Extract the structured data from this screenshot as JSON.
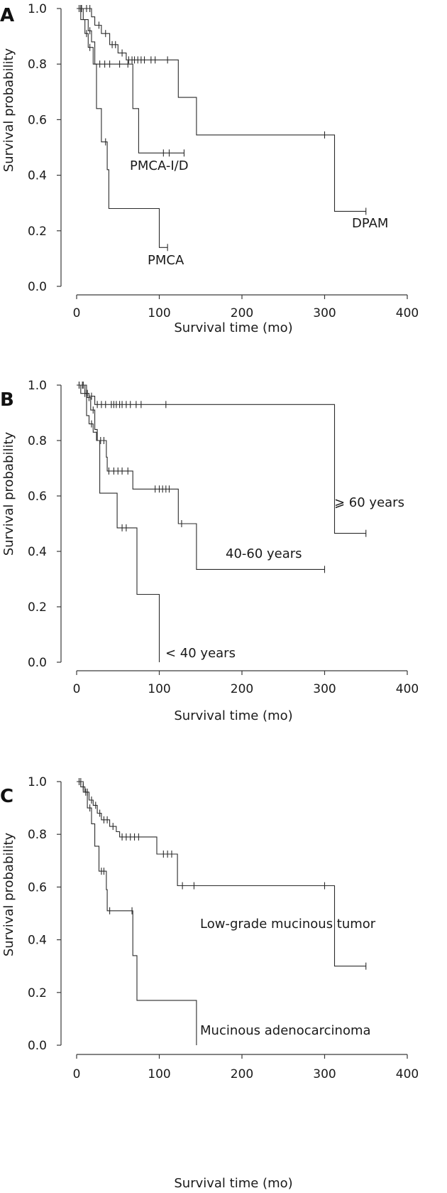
{
  "chart_data": [
    {
      "type": "line",
      "panel_label": "A",
      "xlabel": "Survival time (mo)",
      "ylabel": "Survival probability",
      "xlim": [
        0,
        400
      ],
      "ylim": [
        0,
        1
      ],
      "x_ticks": [
        "0",
        "100",
        "200",
        "300",
        "400"
      ],
      "y_ticks": [
        "0.0",
        "0.2",
        "0.4",
        "0.6",
        "0.8",
        "1.0"
      ],
      "grid": false,
      "series": [
        {
          "name": "DPAM",
          "steps": [
            [
              0,
              1.0
            ],
            [
              18,
              1.0
            ],
            [
              18,
              0.97
            ],
            [
              22,
              0.97
            ],
            [
              22,
              0.94
            ],
            [
              30,
              0.94
            ],
            [
              30,
              0.91
            ],
            [
              40,
              0.91
            ],
            [
              40,
              0.87
            ],
            [
              50,
              0.87
            ],
            [
              50,
              0.84
            ],
            [
              60,
              0.84
            ],
            [
              60,
              0.815
            ],
            [
              123,
              0.815
            ],
            [
              123,
              0.68
            ],
            [
              145,
              0.68
            ],
            [
              145,
              0.545
            ],
            [
              312,
              0.545
            ],
            [
              312,
              0.27
            ],
            [
              350,
              0.27
            ]
          ],
          "censors": [
            [
              5,
              1.0
            ],
            [
              12,
              1.0
            ],
            [
              16,
              1.0
            ],
            [
              27,
              0.94
            ],
            [
              35,
              0.91
            ],
            [
              43,
              0.87
            ],
            [
              47,
              0.87
            ],
            [
              55,
              0.84
            ],
            [
              63,
              0.815
            ],
            [
              67,
              0.815
            ],
            [
              70,
              0.815
            ],
            [
              74,
              0.815
            ],
            [
              78,
              0.815
            ],
            [
              82,
              0.815
            ],
            [
              90,
              0.815
            ],
            [
              95,
              0.815
            ],
            [
              110,
              0.815
            ],
            [
              300,
              0.545
            ],
            [
              350,
              0.27
            ]
          ]
        },
        {
          "name": "PMCA-I/D",
          "steps": [
            [
              0,
              1.0
            ],
            [
              8,
              1.0
            ],
            [
              8,
              0.96
            ],
            [
              14,
              0.96
            ],
            [
              14,
              0.92
            ],
            [
              18,
              0.92
            ],
            [
              18,
              0.88
            ],
            [
              22,
              0.88
            ],
            [
              22,
              0.8
            ],
            [
              68,
              0.8
            ],
            [
              68,
              0.64
            ],
            [
              75,
              0.64
            ],
            [
              75,
              0.48
            ],
            [
              130,
              0.48
            ]
          ],
          "censors": [
            [
              6,
              1.0
            ],
            [
              16,
              0.92
            ],
            [
              28,
              0.8
            ],
            [
              34,
              0.8
            ],
            [
              40,
              0.8
            ],
            [
              52,
              0.8
            ],
            [
              62,
              0.8
            ],
            [
              105,
              0.48
            ],
            [
              112,
              0.48
            ],
            [
              130,
              0.48
            ]
          ]
        },
        {
          "name": "PMCA",
          "steps": [
            [
              0,
              1.0
            ],
            [
              5,
              1.0
            ],
            [
              5,
              0.96
            ],
            [
              10,
              0.96
            ],
            [
              10,
              0.91
            ],
            [
              14,
              0.91
            ],
            [
              14,
              0.86
            ],
            [
              20,
              0.86
            ],
            [
              20,
              0.8
            ],
            [
              24,
              0.8
            ],
            [
              24,
              0.64
            ],
            [
              30,
              0.64
            ],
            [
              30,
              0.52
            ],
            [
              37,
              0.52
            ],
            [
              37,
              0.42
            ],
            [
              39,
              0.42
            ],
            [
              39,
              0.28
            ],
            [
              100,
              0.28
            ],
            [
              100,
              0.14
            ],
            [
              110,
              0.14
            ]
          ],
          "censors": [
            [
              3,
              1.0
            ],
            [
              12,
              0.91
            ],
            [
              16,
              0.86
            ],
            [
              35,
              0.52
            ],
            [
              110,
              0.14
            ]
          ]
        }
      ],
      "annotations": [
        "PMCA-I/D",
        "DPAM",
        "PMCA"
      ]
    },
    {
      "type": "line",
      "panel_label": "B",
      "xlabel": "Survival time (mo)",
      "ylabel": "Survival probability",
      "xlim": [
        0,
        400
      ],
      "ylim": [
        0,
        1
      ],
      "x_ticks": [
        "0",
        "100",
        "200",
        "300",
        "400"
      ],
      "y_ticks": [
        "0.0",
        "0.2",
        "0.4",
        "0.6",
        "0.8",
        "1.0"
      ],
      "grid": false,
      "series": [
        {
          "name": "⩾ 60 years",
          "steps": [
            [
              0,
              1.0
            ],
            [
              10,
              1.0
            ],
            [
              10,
              0.97
            ],
            [
              15,
              0.97
            ],
            [
              15,
              0.96
            ],
            [
              22,
              0.96
            ],
            [
              22,
              0.93
            ],
            [
              312,
              0.93
            ],
            [
              312,
              0.465
            ],
            [
              350,
              0.465
            ]
          ],
          "censors": [
            [
              3,
              1.0
            ],
            [
              7,
              1.0
            ],
            [
              13,
              0.97
            ],
            [
              18,
              0.96
            ],
            [
              25,
              0.93
            ],
            [
              30,
              0.93
            ],
            [
              35,
              0.93
            ],
            [
              42,
              0.93
            ],
            [
              45,
              0.93
            ],
            [
              48,
              0.93
            ],
            [
              52,
              0.93
            ],
            [
              55,
              0.93
            ],
            [
              60,
              0.93
            ],
            [
              65,
              0.93
            ],
            [
              72,
              0.93
            ],
            [
              78,
              0.93
            ],
            [
              108,
              0.93
            ],
            [
              350,
              0.465
            ]
          ]
        },
        {
          "name": "40-60 years",
          "steps": [
            [
              0,
              1.0
            ],
            [
              12,
              1.0
            ],
            [
              12,
              0.955
            ],
            [
              17,
              0.955
            ],
            [
              17,
              0.91
            ],
            [
              22,
              0.91
            ],
            [
              22,
              0.84
            ],
            [
              25,
              0.84
            ],
            [
              25,
              0.8
            ],
            [
              36,
              0.8
            ],
            [
              36,
              0.74
            ],
            [
              37,
              0.74
            ],
            [
              37,
              0.69
            ],
            [
              68,
              0.69
            ],
            [
              68,
              0.625
            ],
            [
              123,
              0.625
            ],
            [
              123,
              0.5
            ],
            [
              145,
              0.5
            ],
            [
              145,
              0.335
            ],
            [
              300,
              0.335
            ]
          ],
          "censors": [
            [
              8,
              1.0
            ],
            [
              15,
              0.955
            ],
            [
              20,
              0.91
            ],
            [
              29,
              0.8
            ],
            [
              33,
              0.8
            ],
            [
              39,
              0.69
            ],
            [
              45,
              0.69
            ],
            [
              50,
              0.69
            ],
            [
              55,
              0.69
            ],
            [
              62,
              0.69
            ],
            [
              95,
              0.625
            ],
            [
              100,
              0.625
            ],
            [
              104,
              0.625
            ],
            [
              108,
              0.625
            ],
            [
              112,
              0.625
            ],
            [
              127,
              0.5
            ],
            [
              300,
              0.335
            ]
          ]
        },
        {
          "name": "< 40 years",
          "steps": [
            [
              0,
              1.0
            ],
            [
              5,
              1.0
            ],
            [
              5,
              0.97
            ],
            [
              12,
              0.97
            ],
            [
              12,
              0.89
            ],
            [
              15,
              0.89
            ],
            [
              15,
              0.86
            ],
            [
              20,
              0.86
            ],
            [
              20,
              0.83
            ],
            [
              24,
              0.83
            ],
            [
              24,
              0.8
            ],
            [
              28,
              0.8
            ],
            [
              28,
              0.61
            ],
            [
              49,
              0.61
            ],
            [
              49,
              0.485
            ],
            [
              73,
              0.485
            ],
            [
              73,
              0.245
            ],
            [
              100,
              0.245
            ],
            [
              100,
              0.0
            ]
          ],
          "censors": [
            [
              3,
              1.0
            ],
            [
              10,
              0.97
            ],
            [
              18,
              0.86
            ],
            [
              55,
              0.485
            ],
            [
              60,
              0.485
            ]
          ]
        }
      ],
      "annotations": [
        "⩾ 60 years",
        "40-60 years",
        "< 40 years"
      ]
    },
    {
      "type": "line",
      "panel_label": "C",
      "xlabel": "Survival time (mo)",
      "ylabel": "Survival probability",
      "xlim": [
        0,
        400
      ],
      "ylim": [
        0,
        1
      ],
      "x_ticks": [
        "0",
        "100",
        "200",
        "300",
        "400"
      ],
      "y_ticks": [
        "0.0",
        "0.2",
        "0.4",
        "0.6",
        "0.8",
        "1.0"
      ],
      "grid": false,
      "series": [
        {
          "name": "Low-grade mucinous tumor",
          "steps": [
            [
              0,
              1.0
            ],
            [
              5,
              1.0
            ],
            [
              5,
              0.98
            ],
            [
              10,
              0.98
            ],
            [
              10,
              0.96
            ],
            [
              15,
              0.96
            ],
            [
              15,
              0.93
            ],
            [
              20,
              0.93
            ],
            [
              20,
              0.91
            ],
            [
              25,
              0.91
            ],
            [
              25,
              0.88
            ],
            [
              30,
              0.88
            ],
            [
              30,
              0.855
            ],
            [
              40,
              0.855
            ],
            [
              40,
              0.83
            ],
            [
              48,
              0.83
            ],
            [
              48,
              0.81
            ],
            [
              52,
              0.81
            ],
            [
              52,
              0.79
            ],
            [
              97,
              0.79
            ],
            [
              97,
              0.725
            ],
            [
              122,
              0.725
            ],
            [
              122,
              0.605
            ],
            [
              312,
              0.605
            ],
            [
              312,
              0.3
            ],
            [
              350,
              0.3
            ]
          ],
          "censors": [
            [
              3,
              1.0
            ],
            [
              8,
              0.98
            ],
            [
              13,
              0.96
            ],
            [
              18,
              0.93
            ],
            [
              23,
              0.91
            ],
            [
              28,
              0.88
            ],
            [
              33,
              0.855
            ],
            [
              37,
              0.855
            ],
            [
              44,
              0.83
            ],
            [
              55,
              0.79
            ],
            [
              60,
              0.79
            ],
            [
              65,
              0.79
            ],
            [
              70,
              0.79
            ],
            [
              75,
              0.79
            ],
            [
              105,
              0.725
            ],
            [
              110,
              0.725
            ],
            [
              115,
              0.725
            ],
            [
              128,
              0.605
            ],
            [
              142,
              0.605
            ],
            [
              300,
              0.605
            ],
            [
              350,
              0.3
            ]
          ]
        },
        {
          "name": "Mucinous adenocarcinoma",
          "steps": [
            [
              0,
              1.0
            ],
            [
              8,
              1.0
            ],
            [
              8,
              0.96
            ],
            [
              13,
              0.96
            ],
            [
              13,
              0.9
            ],
            [
              18,
              0.9
            ],
            [
              18,
              0.84
            ],
            [
              22,
              0.84
            ],
            [
              22,
              0.755
            ],
            [
              27,
              0.755
            ],
            [
              27,
              0.66
            ],
            [
              36,
              0.66
            ],
            [
              36,
              0.59
            ],
            [
              37,
              0.59
            ],
            [
              37,
              0.51
            ],
            [
              68,
              0.51
            ],
            [
              68,
              0.34
            ],
            [
              73,
              0.34
            ],
            [
              73,
              0.17
            ],
            [
              145,
              0.17
            ],
            [
              145,
              0.0
            ]
          ],
          "censors": [
            [
              5,
              1.0
            ],
            [
              11,
              0.96
            ],
            [
              16,
              0.9
            ],
            [
              30,
              0.66
            ],
            [
              33,
              0.66
            ],
            [
              40,
              0.51
            ],
            [
              67,
              0.51
            ]
          ]
        }
      ],
      "annotations": [
        "Low-grade mucinous tumor",
        "Mucinous adenocarcinoma"
      ]
    }
  ]
}
